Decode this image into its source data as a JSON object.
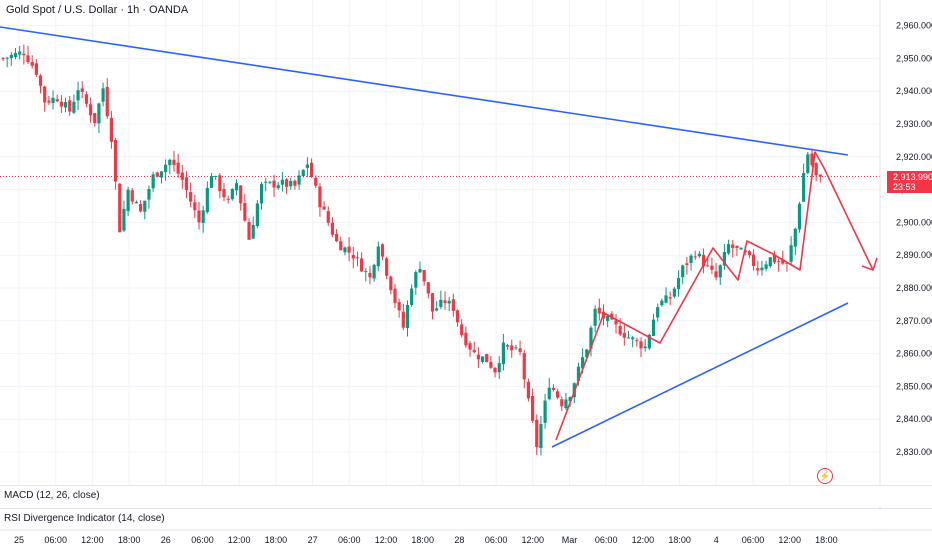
{
  "header": {
    "title": "Gold Spot / U.S. Dollar · 1h · OANDA"
  },
  "indicators": {
    "macd": "MACD (12, 26, close)",
    "rsi": "RSI Divergence Indicator (14, close)"
  },
  "price_label": {
    "value": "2,913.990",
    "countdown": "23:53"
  },
  "colors": {
    "up": "#089981",
    "down": "#f23645",
    "trendline": "#2962ff",
    "projection": "#f23645"
  },
  "chart_data": {
    "type": "candlestick",
    "title": "Gold Spot / U.S. Dollar · 1h · OANDA",
    "ylim": [
      2826,
      2966
    ],
    "y_ticks": [
      "2,830.000",
      "2,840.000",
      "2,850.000",
      "2,860.000",
      "2,870.000",
      "2,880.000",
      "2,890.000",
      "2,900.000",
      "2,910.000",
      "2,920.000",
      "2,930.000",
      "2,940.000",
      "2,950.000",
      "2,960.000"
    ],
    "x_ticks": [
      "25",
      "06:00",
      "12:00",
      "18:00",
      "26",
      "06:00",
      "12:00",
      "18:00",
      "27",
      "06:00",
      "12:00",
      "18:00",
      "28",
      "06:00",
      "12:00",
      "Mar",
      "06:00",
      "12:00",
      "18:00",
      "4",
      "06:00",
      "12:00",
      "18:00"
    ],
    "last_price": 2913.99,
    "key_points": [
      {
        "label": "high",
        "value": 2953
      },
      {
        "label": "low",
        "value": 2832
      },
      {
        "label": "recent high",
        "value": 2921
      },
      {
        "label": "projected target",
        "value": 2885
      }
    ]
  }
}
